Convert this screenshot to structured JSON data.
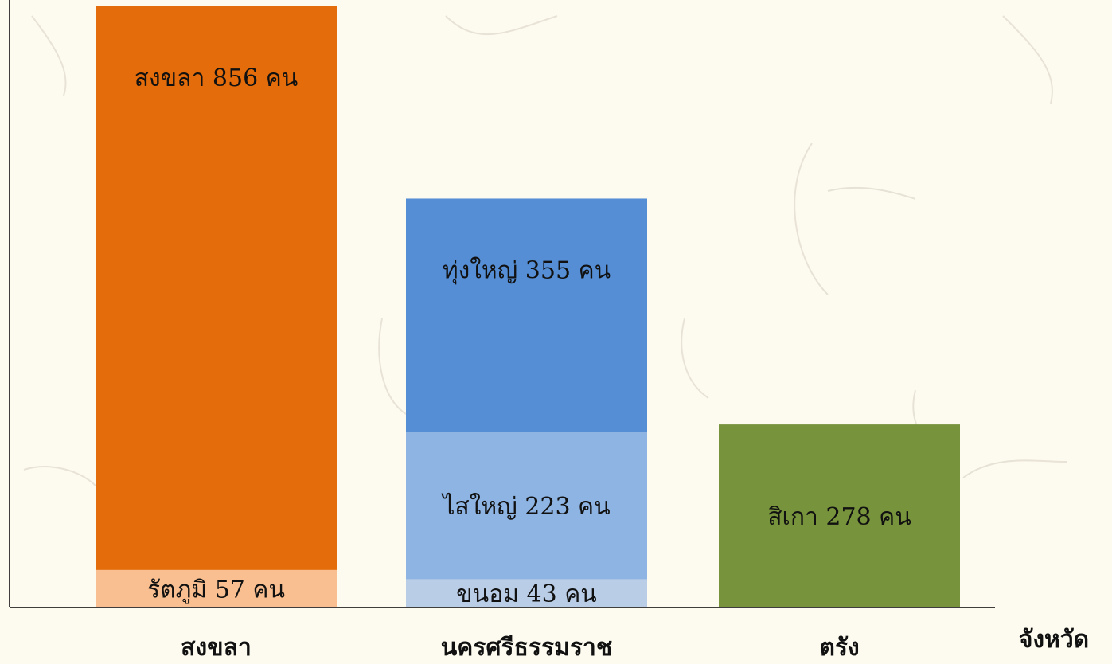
{
  "chart_data": {
    "type": "bar",
    "stacked": true,
    "categories": [
      "สงขลา",
      "นครศรีธรรมราช",
      "ตรัง"
    ],
    "xlabel": "จังหวัด",
    "ylabel": "",
    "segments": [
      {
        "category": "สงขลา",
        "items": [
          {
            "label": "รัตภูมิ 57 คน",
            "value": 57,
            "color": "#f9bf90"
          },
          {
            "label": "สงขลา 856 คน",
            "value": 856,
            "color": "#e46c0a"
          }
        ]
      },
      {
        "category": "นครศรีธรรมราช",
        "items": [
          {
            "label": "ขนอม 43 คน",
            "value": 43,
            "color": "#b9cde6"
          },
          {
            "label": "ไสใหญ่ 223 คน",
            "value": 223,
            "color": "#8eb4e3"
          },
          {
            "label": "ทุ่งใหญ่ 355 คน",
            "value": 355,
            "color": "#558ed5"
          }
        ]
      },
      {
        "category": "ตรัง",
        "items": [
          {
            "label": "สิเกา 278 คน",
            "value": 278,
            "color": "#77933c"
          }
        ]
      }
    ],
    "legend": "none",
    "grid": false
  }
}
